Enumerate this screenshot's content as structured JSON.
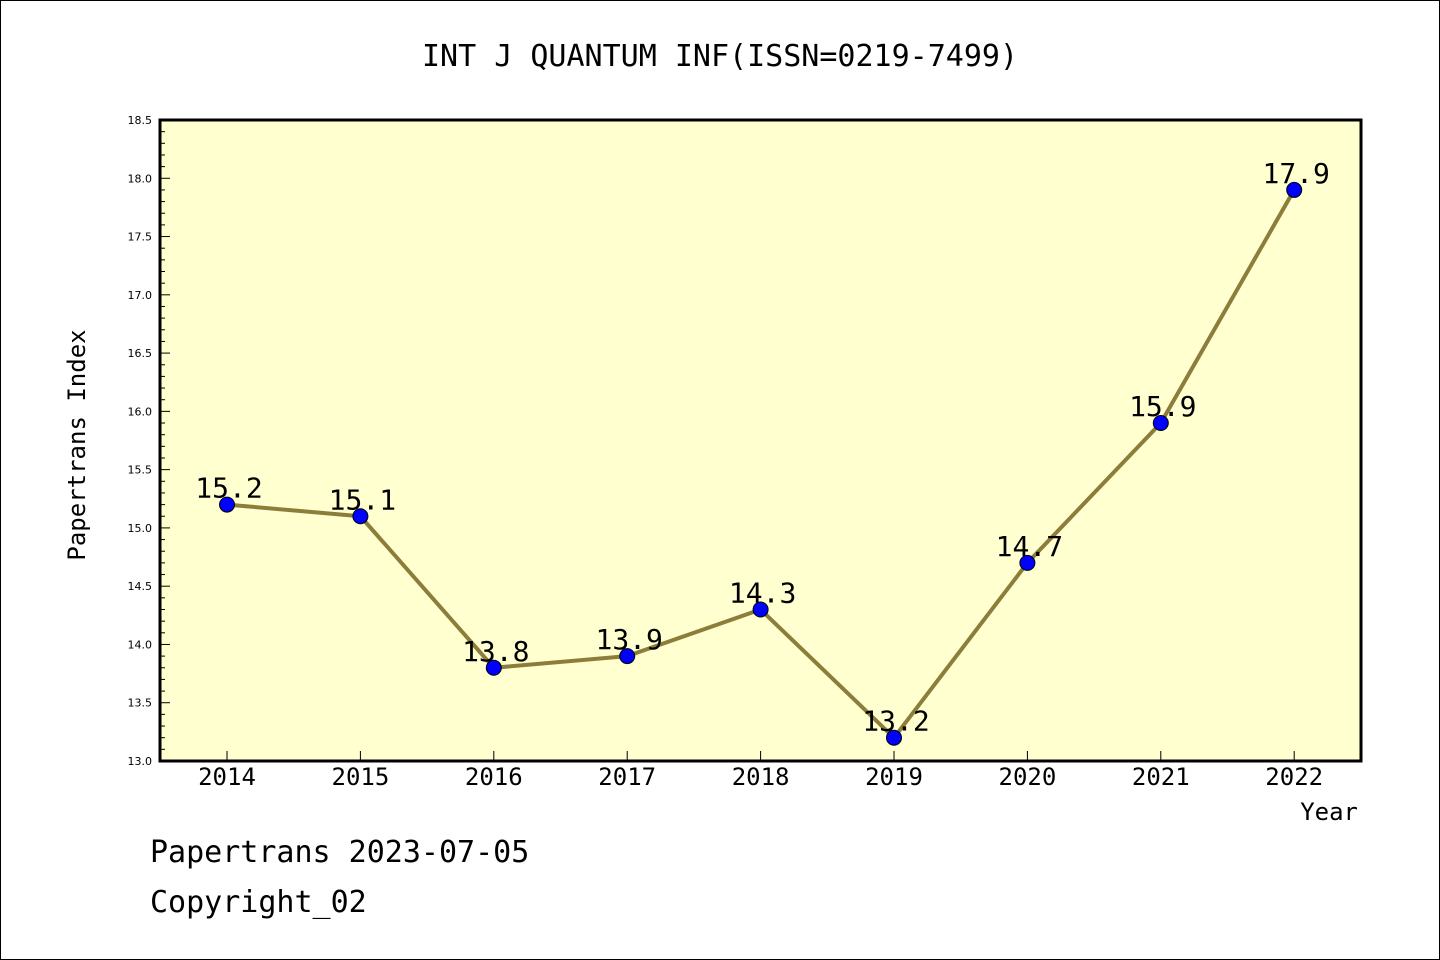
{
  "chart_data": {
    "type": "line",
    "title": "INT J QUANTUM INF(ISSN=0219-7499)",
    "xlabel": "Year",
    "ylabel": "Papertrans Index",
    "categories": [
      "2014",
      "2015",
      "2016",
      "2017",
      "2018",
      "2019",
      "2020",
      "2021",
      "2022"
    ],
    "series": [
      {
        "values": [
          15.2,
          15.1,
          13.8,
          13.9,
          14.3,
          13.2,
          14.7,
          15.9,
          17.9
        ]
      }
    ],
    "data_labels": [
      "15.2",
      "15.1",
      "13.8",
      "13.9",
      "14.3",
      "13.2",
      "14.7",
      "15.9",
      "17.9"
    ],
    "ylim": [
      13.0,
      18.5
    ],
    "yticks": [
      "13.0",
      "13.5",
      "14.0",
      "14.5",
      "15.0",
      "15.5",
      "16.0",
      "16.5",
      "17.0",
      "17.5",
      "18.0",
      "18.5"
    ],
    "grid": false,
    "colors": {
      "plot_background": "#ffffd0",
      "line": "#8c7d3a",
      "marker": "#0000ff"
    }
  },
  "footer": {
    "stamp": "Papertrans 2023-07-05",
    "copyright": "Copyright_02"
  }
}
